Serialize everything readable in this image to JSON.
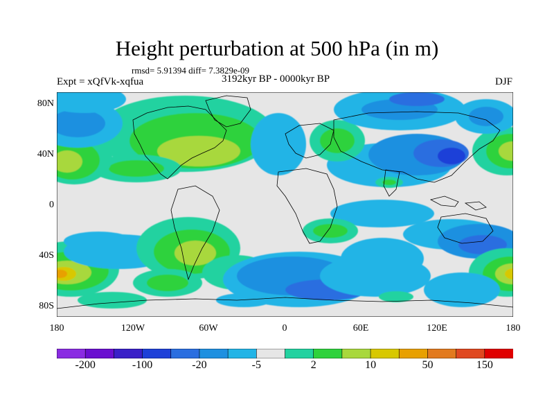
{
  "title": "Height perturbation at 500 hPa (in m)",
  "stats_line": "rmsd= 5.91394  diff= 7.3829e-09",
  "experiment": "Expt = xQfVk-xqfua",
  "period": "3192kyr BP - 0000kyr BP",
  "season": "DJF",
  "lat_ticks": [
    "80N",
    "40N",
    "0",
    "40S",
    "80S"
  ],
  "lon_ticks": [
    "180",
    "120W",
    "60W",
    "0",
    "60E",
    "120E",
    "180"
  ],
  "colorbar": {
    "colors": [
      "#8a2be2",
      "#6a0fd0",
      "#3a20c8",
      "#1e40d8",
      "#2a6ee0",
      "#1e90e0",
      "#22b4e6",
      "#e6e6e6",
      "#22d2a0",
      "#2ed23c",
      "#a8d83c",
      "#d8c800",
      "#e8a000",
      "#e27a1e",
      "#e04820",
      "#e00000"
    ],
    "labels": [
      "-200",
      "-100",
      "-20",
      "-5",
      "2",
      "10",
      "50",
      "150"
    ],
    "label_positions_bin_index": [
      1,
      3,
      5,
      7,
      9,
      11,
      13,
      15
    ]
  },
  "colors": {
    "neutral": "#e6e6e6",
    "light_blue": "#22b4e6",
    "mid_blue": "#1e90e0",
    "blue": "#2a6ee0",
    "dark_blue": "#1e40d8",
    "teal": "#22d2a0",
    "green": "#2ed23c",
    "yellow_green": "#a8d83c",
    "yellow": "#d8c800",
    "orange": "#e8a000"
  }
}
